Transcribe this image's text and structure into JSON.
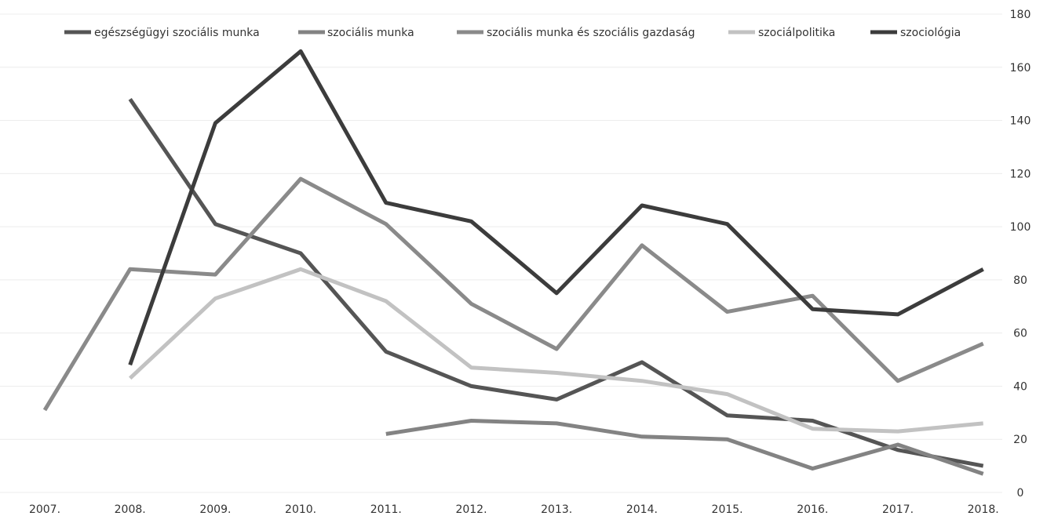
{
  "chart_data": {
    "type": "line",
    "title": "",
    "xlabel": "",
    "ylabel": "",
    "categories": [
      "2007.",
      "2008.",
      "2009.",
      "2010.",
      "2011.",
      "2012.",
      "2013.",
      "2014.",
      "2015.",
      "2016.",
      "2017.",
      "2018."
    ],
    "ylim": [
      0,
      180
    ],
    "yticks": [
      0,
      20,
      40,
      60,
      80,
      100,
      120,
      140,
      160,
      180
    ],
    "grid": true,
    "legend_position": "top",
    "series": [
      {
        "name": "egészségügyi szociális munka",
        "color": "#555555",
        "values": [
          null,
          148,
          101,
          90,
          53,
          40,
          35,
          49,
          29,
          27,
          16,
          10
        ]
      },
      {
        "name": "szociális munka",
        "color": "#838383",
        "values": [
          null,
          null,
          null,
          null,
          22,
          27,
          26,
          21,
          20,
          9,
          18,
          7
        ]
      },
      {
        "name": "szociális munka és szociális gazdaság",
        "color": "#8a8a8a",
        "values": [
          31,
          84,
          82,
          118,
          101,
          71,
          54,
          93,
          68,
          74,
          42,
          56
        ]
      },
      {
        "name": "szociálpolitika",
        "color": "#c2c2c2",
        "values": [
          null,
          43,
          73,
          84,
          72,
          47,
          45,
          42,
          37,
          24,
          23,
          26
        ]
      },
      {
        "name": "szociológia",
        "color": "#3c3c3c",
        "values": [
          null,
          48,
          139,
          166,
          109,
          102,
          75,
          108,
          101,
          69,
          67,
          84
        ]
      }
    ]
  }
}
